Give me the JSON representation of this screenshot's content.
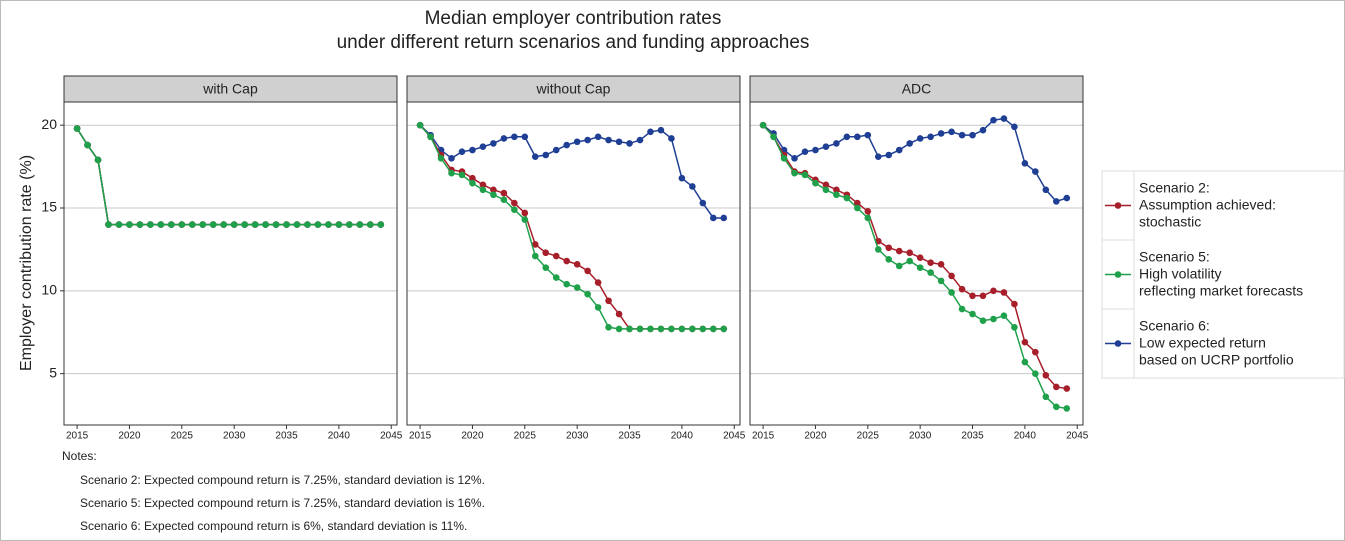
{
  "title": [
    "Median employer contribution rates",
    "under different return scenarios and funding approaches"
  ],
  "y_label": "Employer contribution rate (%)",
  "notes": {
    "heading": "Notes:",
    "lines": [
      "Scenario 2: Expected compound return is 7.25%, standard deviation is 12%.",
      "Scenario 5: Expected compound return is 7.25%, standard deviation is 16%.",
      "Scenario 6: Expected compound return is 6%, standard deviation is 11%."
    ]
  },
  "chart_data": [
    {
      "type": "line",
      "facet": "with Cap",
      "x": [
        2015,
        2016,
        2017,
        2018,
        2019,
        2020,
        2021,
        2022,
        2023,
        2024,
        2025,
        2026,
        2027,
        2028,
        2029,
        2030,
        2031,
        2032,
        2033,
        2034,
        2035,
        2036,
        2037,
        2038,
        2039,
        2040,
        2041,
        2042,
        2043,
        2044
      ],
      "xlim": [
        2013.75,
        2045.55
      ],
      "xticks": [
        2015,
        2020,
        2025,
        2030,
        2035,
        2040,
        2045
      ],
      "ylim": [
        1.9,
        21.4
      ],
      "yticks": [
        5,
        10,
        15,
        20
      ],
      "grid": true,
      "legend": "right",
      "series": [
        {
          "name": "Scenario 2:\nAssumption achieved:\nstochastic",
          "color": "#a61f2a",
          "values": [
            19.8,
            18.8,
            17.9,
            14,
            14,
            14,
            14,
            14,
            14,
            14,
            14,
            14,
            14,
            14,
            14,
            14,
            14,
            14,
            14,
            14,
            14,
            14,
            14,
            14,
            14,
            14,
            14,
            14,
            14,
            14
          ]
        },
        {
          "name": "Scenario 5:\nHigh volatility\nreflecting market forecasts",
          "color": "#1fa04a",
          "values": [
            19.8,
            18.8,
            17.9,
            14,
            14,
            14,
            14,
            14,
            14,
            14,
            14,
            14,
            14,
            14,
            14,
            14,
            14,
            14,
            14,
            14,
            14,
            14,
            14,
            14,
            14,
            14,
            14,
            14,
            14,
            14
          ]
        },
        {
          "name": "Scenario 6:\nLow expected return\nbased on UCRP portfolio",
          "color": "#1f3f94",
          "values": [
            19.8,
            18.8,
            17.9,
            14,
            14,
            14,
            14,
            14,
            14,
            14,
            14,
            14,
            14,
            14,
            14,
            14,
            14,
            14,
            14,
            14,
            14,
            14,
            14,
            14,
            14,
            14,
            14,
            14,
            14,
            14
          ]
        }
      ]
    },
    {
      "type": "line",
      "facet": "without Cap",
      "x": [
        2015,
        2016,
        2017,
        2018,
        2019,
        2020,
        2021,
        2022,
        2023,
        2024,
        2025,
        2026,
        2027,
        2028,
        2029,
        2030,
        2031,
        2032,
        2033,
        2034,
        2035,
        2036,
        2037,
        2038,
        2039,
        2040,
        2041,
        2042,
        2043,
        2044
      ],
      "xlim": [
        2013.75,
        2045.55
      ],
      "xticks": [
        2015,
        2020,
        2025,
        2030,
        2035,
        2040,
        2045
      ],
      "ylim": [
        1.9,
        21.4
      ],
      "yticks": [
        5,
        10,
        15,
        20
      ],
      "grid": true,
      "series": [
        {
          "color": "#a61f2a",
          "values": [
            20,
            19.3,
            18.2,
            17.3,
            17.2,
            16.8,
            16.4,
            16.1,
            15.9,
            15.3,
            14.7,
            12.8,
            12.3,
            12.1,
            11.8,
            11.6,
            11.2,
            10.5,
            9.4,
            8.6,
            7.7,
            7.7,
            7.7,
            7.7,
            7.7,
            7.7,
            7.7,
            7.7,
            7.7,
            7.7
          ]
        },
        {
          "color": "#1fa04a",
          "values": [
            20,
            19.3,
            18,
            17.1,
            17,
            16.5,
            16.1,
            15.8,
            15.5,
            14.9,
            14.3,
            12.1,
            11.4,
            10.8,
            10.4,
            10.2,
            9.8,
            9,
            7.8,
            7.7,
            7.7,
            7.7,
            7.7,
            7.7,
            7.7,
            7.7,
            7.7,
            7.7,
            7.7,
            7.7
          ]
        },
        {
          "color": "#1f3f94",
          "values": [
            20,
            19.4,
            18.5,
            18,
            18.4,
            18.5,
            18.7,
            18.9,
            19.2,
            19.3,
            19.3,
            18.1,
            18.2,
            18.5,
            18.8,
            19,
            19.1,
            19.3,
            19.1,
            19,
            18.9,
            19.1,
            19.6,
            19.7,
            19.2,
            16.8,
            16.3,
            15.3,
            14.4,
            14.4
          ]
        }
      ]
    },
    {
      "type": "line",
      "facet": "ADC",
      "x": [
        2015,
        2016,
        2017,
        2018,
        2019,
        2020,
        2021,
        2022,
        2023,
        2024,
        2025,
        2026,
        2027,
        2028,
        2029,
        2030,
        2031,
        2032,
        2033,
        2034,
        2035,
        2036,
        2037,
        2038,
        2039,
        2040,
        2041,
        2042,
        2043,
        2044
      ],
      "xlim": [
        2013.75,
        2045.55
      ],
      "xticks": [
        2015,
        2020,
        2025,
        2030,
        2035,
        2040,
        2045
      ],
      "ylim": [
        1.9,
        21.4
      ],
      "yticks": [
        5,
        10,
        15,
        20
      ],
      "grid": true,
      "series": [
        {
          "color": "#a61f2a",
          "values": [
            20,
            19.3,
            18.2,
            17.2,
            17.1,
            16.7,
            16.4,
            16.1,
            15.8,
            15.3,
            14.8,
            13,
            12.6,
            12.4,
            12.3,
            12,
            11.7,
            11.6,
            10.9,
            10.1,
            9.7,
            9.7,
            10,
            9.9,
            9.2,
            6.9,
            6.3,
            4.9,
            4.2,
            4.1
          ]
        },
        {
          "color": "#1fa04a",
          "values": [
            20,
            19.3,
            18,
            17.1,
            17,
            16.5,
            16.1,
            15.8,
            15.6,
            15,
            14.4,
            12.5,
            11.9,
            11.5,
            11.8,
            11.4,
            11.1,
            10.6,
            9.9,
            8.9,
            8.6,
            8.2,
            8.3,
            8.5,
            7.8,
            5.7,
            5,
            3.6,
            3,
            2.9
          ]
        },
        {
          "color": "#1f3f94",
          "values": [
            20,
            19.5,
            18.5,
            18,
            18.4,
            18.5,
            18.7,
            18.9,
            19.3,
            19.3,
            19.4,
            18.1,
            18.2,
            18.5,
            18.9,
            19.2,
            19.3,
            19.5,
            19.6,
            19.4,
            19.4,
            19.7,
            20.3,
            20.4,
            19.9,
            17.7,
            17.2,
            16.1,
            15.4,
            15.6
          ]
        }
      ]
    }
  ]
}
